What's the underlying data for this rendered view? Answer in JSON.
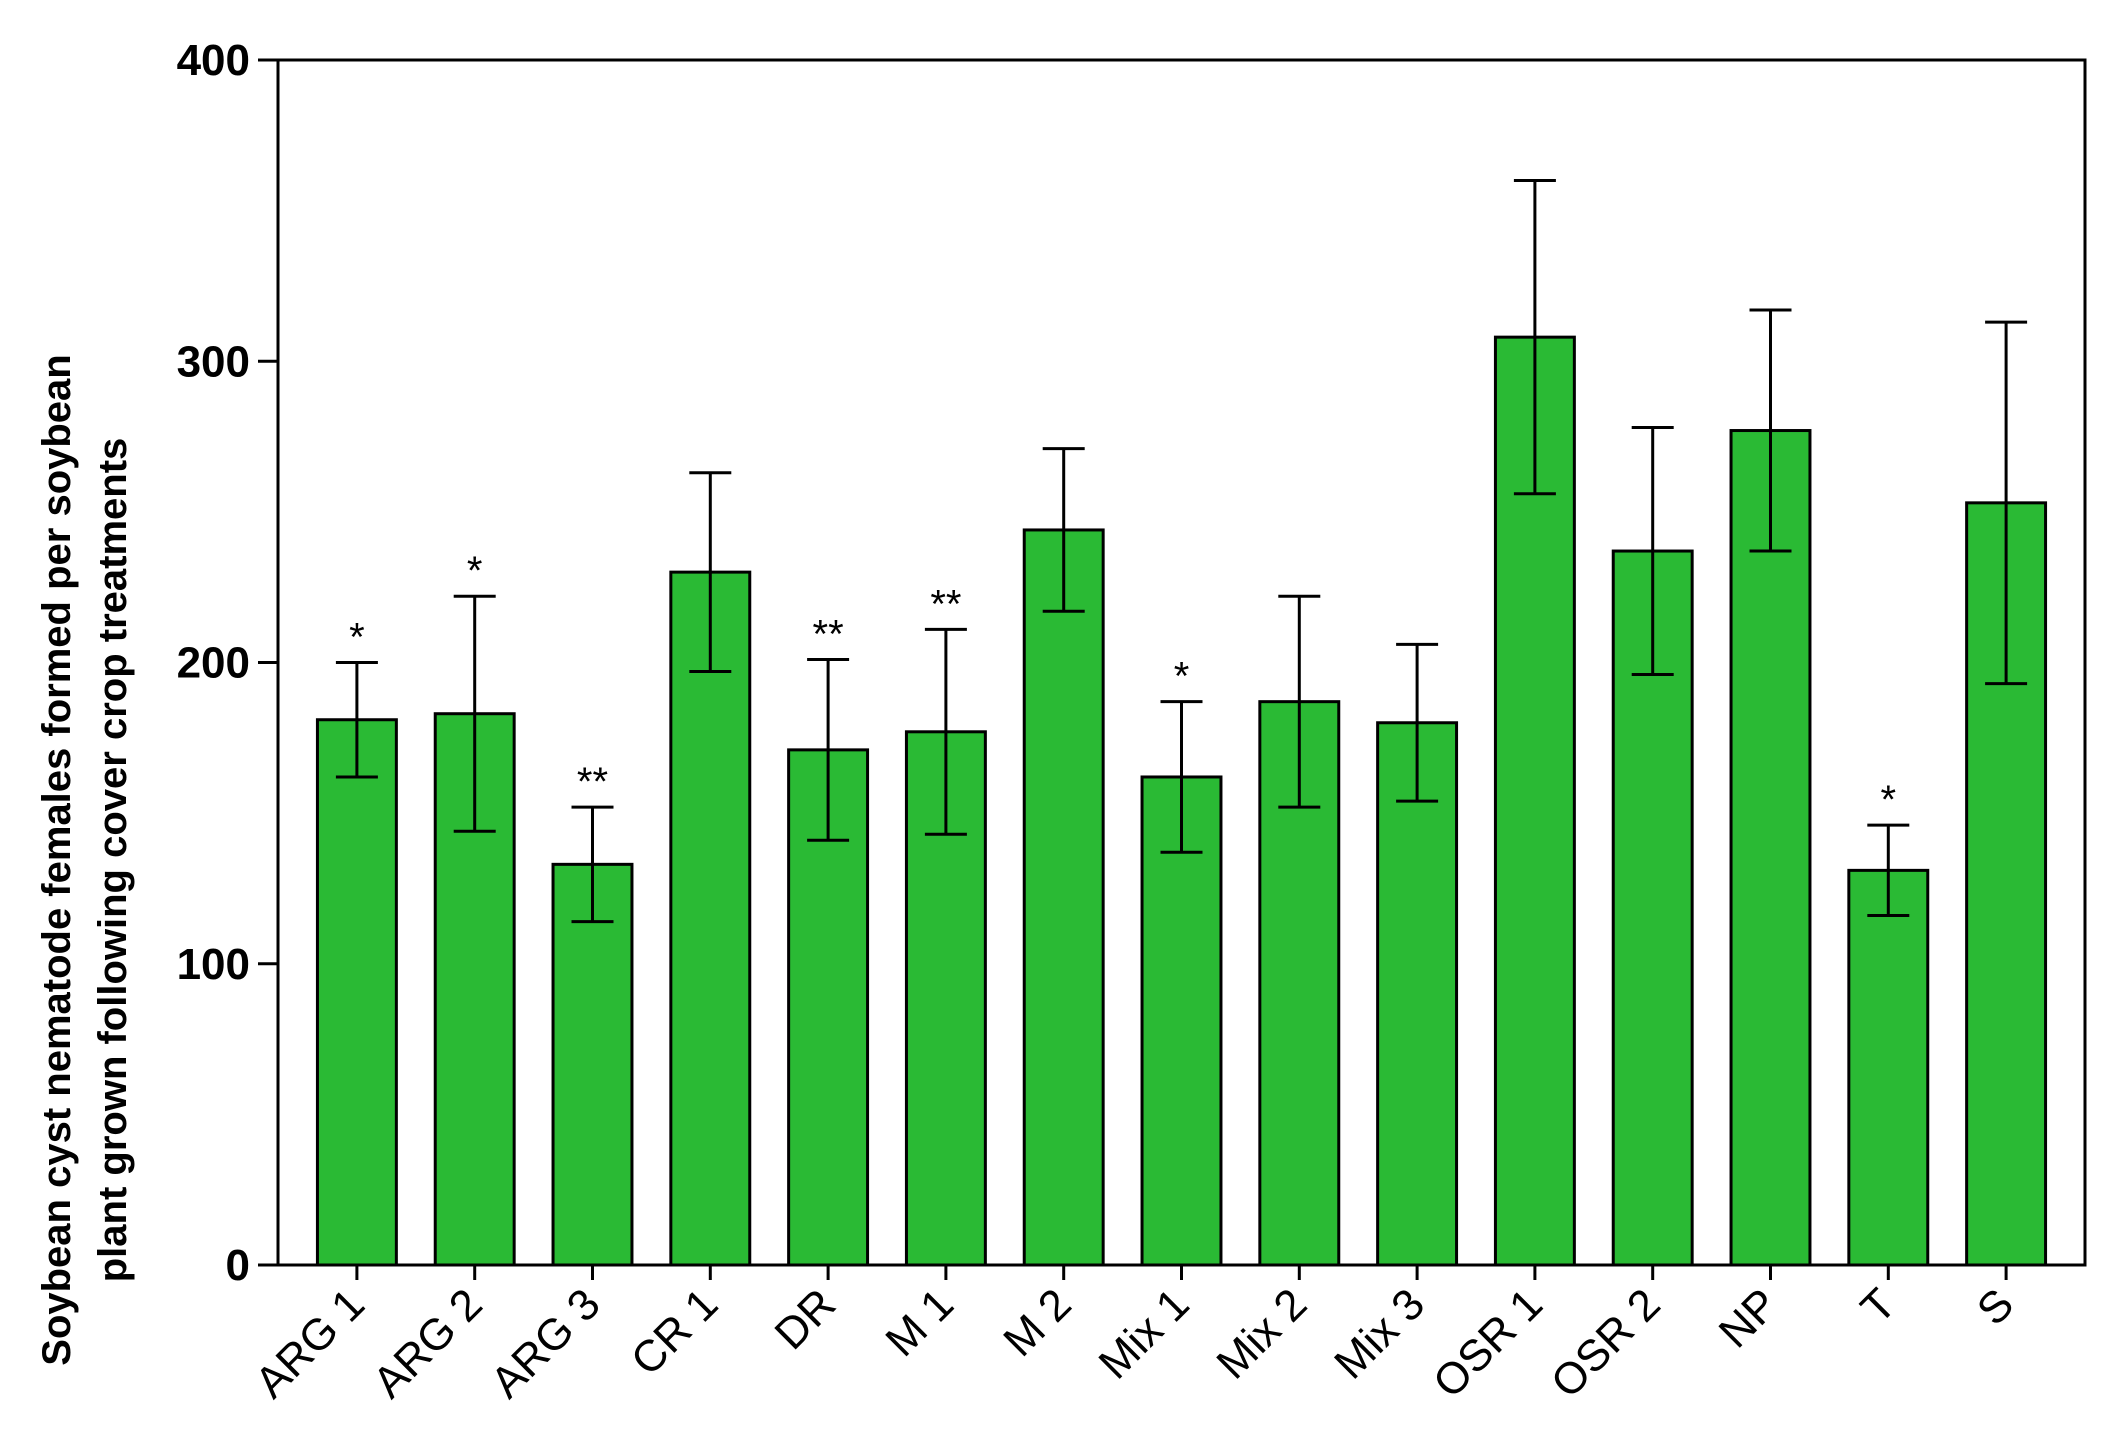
{
  "chart_data": {
    "type": "bar",
    "title": "",
    "xlabel": "",
    "ylabel_lines": [
      "Soybean cyst nematode females formed per soybean",
      "plant grown following cover crop treatments"
    ],
    "ylim": [
      0,
      400
    ],
    "yticks": [
      "0",
      "100",
      "200",
      "300",
      "400"
    ],
    "ytick_values": [
      0,
      100,
      200,
      300,
      400
    ],
    "categories": [
      "ARG 1",
      "ARG 2",
      "ARG 3",
      "CR 1",
      "DR",
      "M 1",
      "M 2",
      "Mix 1",
      "Mix 2",
      "Mix 3",
      "OSR 1",
      "OSR 2",
      "NP",
      "T",
      "S"
    ],
    "values": [
      181,
      183,
      133,
      230,
      171,
      177,
      244,
      162,
      187,
      180,
      308,
      237,
      277,
      131,
      253
    ],
    "error": [
      19,
      39,
      19,
      33,
      30,
      34,
      27,
      25,
      35,
      26,
      52,
      41,
      40,
      15,
      60
    ],
    "significance": [
      "*",
      "*",
      "**",
      "",
      "**",
      "**",
      "",
      "*",
      "",
      "",
      "",
      "",
      "",
      "*",
      ""
    ],
    "bar_color": "#2aba34",
    "edge_color": "#000000",
    "grid": false,
    "legend": "none"
  }
}
